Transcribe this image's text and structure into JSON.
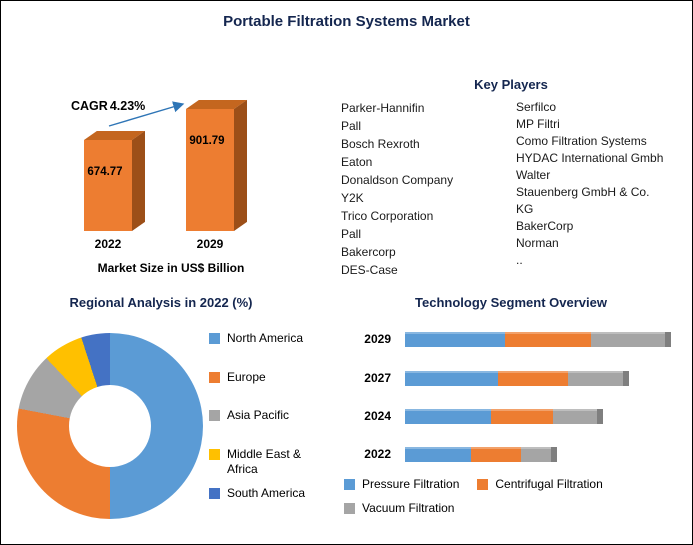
{
  "page": {
    "title": "Portable Filtration Systems Market"
  },
  "chart_data": [
    {
      "type": "bar",
      "name": "market-size-forecast",
      "categories": [
        "2022",
        "2029"
      ],
      "values": [
        674.77,
        901.79
      ],
      "value_labels": [
        "674.77",
        "901.79"
      ],
      "caption": "Market Size in US$ Billion",
      "cagr_label": "CAGR",
      "cagr_value": "4.23%",
      "bar_color": "#ED7D31"
    },
    {
      "type": "pie",
      "name": "regional-analysis",
      "title": "Regional Analysis in 2022 (%)",
      "donut": true,
      "labels": [
        "North America",
        "Europe",
        "Asia Pacific",
        "Middle East & Africa",
        "South America"
      ],
      "values": [
        50,
        28,
        10,
        7,
        5
      ],
      "colors": [
        "#5B9BD5",
        "#ED7D31",
        "#A5A5A5",
        "#FFC000",
        "#4472C4"
      ],
      "legend_position": "right"
    },
    {
      "type": "bar",
      "name": "technology-segment-overview",
      "title": "Technology Segment Overview",
      "orientation": "horizontal",
      "stacked": true,
      "categories": [
        "2029",
        "2027",
        "2024",
        "2022"
      ],
      "series": [
        {
          "name": "Pressure Filtration",
          "color": "#5B9BD5",
          "values": [
            100,
            93,
            86,
            66
          ]
        },
        {
          "name": "Centrifugal Filtration",
          "color": "#ED7D31",
          "values": [
            86,
            70,
            62,
            50
          ]
        },
        {
          "name": "Vacuum Filtration",
          "color": "#A5A5A5",
          "values": [
            74,
            55,
            44,
            30
          ]
        }
      ],
      "legend_position": "bottom"
    }
  ],
  "key_players": {
    "heading": "Key Players",
    "column1": [
      "Parker-Hannifin",
      "Pall",
      "Bosch Rexroth",
      "Eaton",
      "Donaldson Company",
      "Y2K",
      "Trico Corporation",
      "Pall",
      "Bakercorp",
      "DES-Case"
    ],
    "column2": [
      "Serfilco",
      "MP Filtri",
      "Como Filtration Systems",
      "HYDAC International Gmbh",
      "Walter",
      "Stauenberg GmbH & Co. KG",
      "BakerCorp",
      "Norman",
      ".."
    ]
  }
}
